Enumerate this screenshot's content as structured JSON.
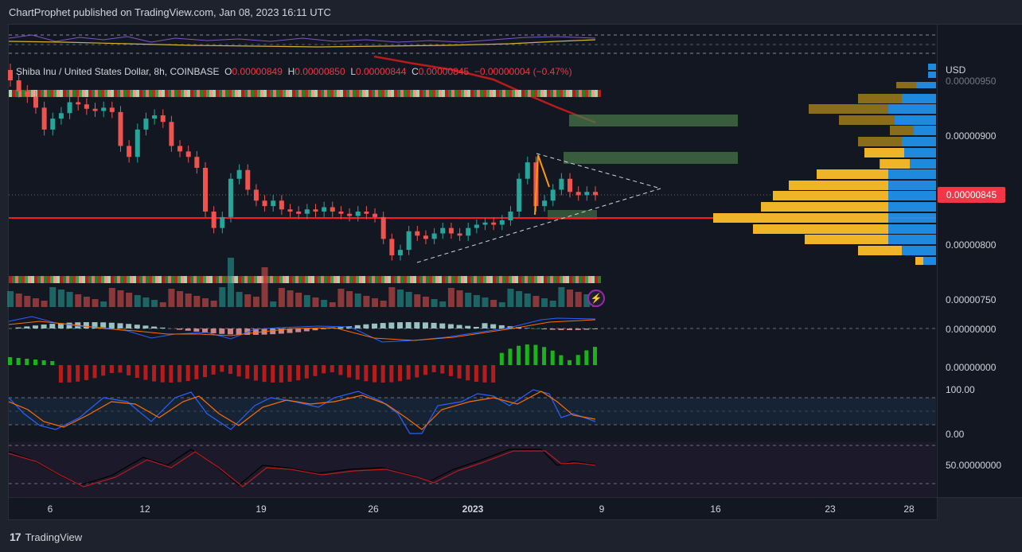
{
  "header": {
    "text": "ChartProphet published on TradingView.com, Jan 08, 2023 16:11 UTC"
  },
  "legend": {
    "symbol": "Shiba Inu / United States Dollar, 8h, COINBASE",
    "o_key": "O",
    "o_val": "0.00000849",
    "h_key": "H",
    "h_val": "0.00000850",
    "l_key": "L",
    "l_val": "0.00000844",
    "c_key": "C",
    "c_val": "0.00000845",
    "change": "−0.00000004 (−0.47%)"
  },
  "price_scale": {
    "currency": "USD",
    "ticks": [
      "0.00000950",
      "0.00000900",
      "0.00000850",
      "0.00000800",
      "0.00000750"
    ],
    "last_price": "0.00000845",
    "macd_ticks": [
      "0.00000000",
      "0.00000000"
    ],
    "osc_ticks": [
      "100.00",
      "0.00"
    ],
    "rsi_ticks": [
      "50.00000000"
    ]
  },
  "time_scale": {
    "labels": [
      "6",
      "12",
      "19",
      "26",
      "2023",
      "9",
      "16",
      "23",
      "28"
    ]
  },
  "footer": {
    "brand": "TradingView",
    "logo_mark": "17"
  },
  "icons": {
    "lightning": "lightning-icon"
  },
  "colors": {
    "up": "#26a69a",
    "down": "#ef5350",
    "accent_red": "#f23645",
    "sr_line": "#ff1a1a",
    "zone": "#4a7a4a"
  },
  "chart_data": {
    "type": "candlestick",
    "symbol": "SHIB/USD",
    "interval": "8h",
    "ylim": [
      7.3e-06,
      9.8e-06
    ],
    "support_level": 8.22e-06,
    "last_close": 8.45e-06,
    "resistance_zones": [
      [
        9.06e-06,
        9.17e-06
      ],
      [
        8.68e-06,
        8.77e-06
      ]
    ],
    "closes_approx": [
      9.5e-06,
      9.4e-06,
      9.35e-06,
      9.25e-06,
      9.05e-06,
      9.15e-06,
      9.2e-06,
      9.3e-06,
      9.28e-06,
      9.24e-06,
      9.22e-06,
      9.25e-06,
      9.21e-06,
      8.9e-06,
      8.8e-06,
      9.05e-06,
      9.15e-06,
      9.18e-06,
      9.12e-06,
      8.9e-06,
      8.85e-06,
      8.8e-06,
      8.7e-06,
      8.3e-06,
      8.15e-06,
      8.25e-06,
      8.6e-06,
      8.68e-06,
      8.5e-06,
      8.4e-06,
      8.35e-06,
      8.4e-06,
      8.32e-06,
      8.3e-06,
      8.28e-06,
      8.32e-06,
      8.3e-06,
      8.34e-06,
      8.3e-06,
      8.28e-06,
      8.26e-06,
      8.3e-06,
      8.28e-06,
      8.25e-06,
      8.05e-06,
      7.9e-06,
      7.95e-06,
      8.12e-06,
      8.08e-06,
      8.05e-06,
      8.1e-06,
      8.15e-06,
      8.1e-06,
      8.08e-06,
      8.15e-06,
      8.18e-06,
      8.2e-06,
      8.18e-06,
      8.22e-06,
      8.3e-06,
      8.6e-06,
      8.75e-06,
      8.35e-06,
      8.4e-06,
      8.5e-06,
      8.6e-06,
      8.48e-06,
      8.45e-06,
      8.48e-06,
      8.45e-06
    ]
  }
}
